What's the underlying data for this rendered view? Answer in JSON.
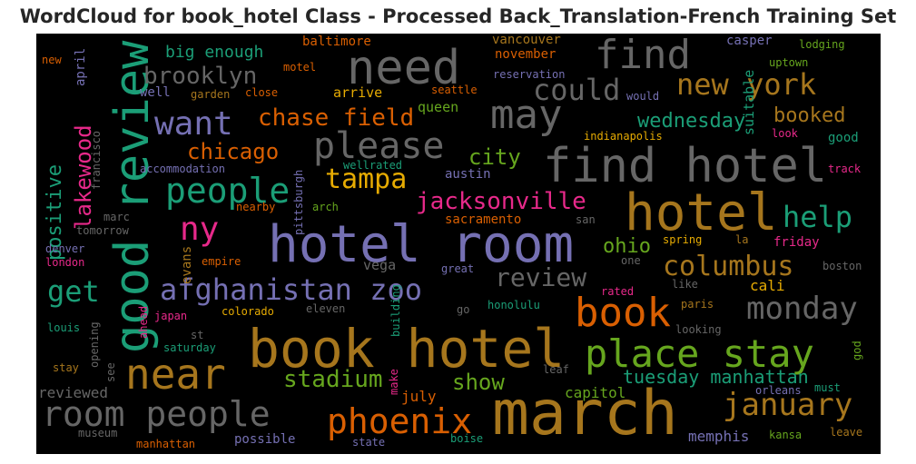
{
  "title": "WordCloud for book_hotel Class - Processed Back_Translation-French Training Set",
  "palette": {
    "background": "#000000",
    "orange": "#d95f02",
    "teal": "#1b9e77",
    "purple": "#7570b3",
    "magenta": "#e7298a",
    "green": "#66a61e",
    "gold": "#e6ab02",
    "brown": "#a6761d",
    "gray": "#666666"
  },
  "words": [
    "book hotel",
    "march",
    "hotel room",
    "good review",
    "hotel",
    "find hotel",
    "need",
    "near",
    "room people",
    "may",
    "find",
    "place stay",
    "book",
    "afghanistan zoo",
    "please",
    "phoenix",
    "january",
    "monday",
    "people",
    "want",
    "new york",
    "columbus",
    "review",
    "could",
    "chase field",
    "tampa",
    "ny",
    "help",
    "jacksonville",
    "get",
    "lakewood",
    "stadium",
    "brooklyn",
    "positive",
    "chicago",
    "tuesday manhattan",
    "wednesday",
    "booked",
    "show",
    "city",
    "big enough",
    "ohio",
    "capitol",
    "memphis",
    "reviewed",
    "july",
    "vancouver",
    "november",
    "baltimore",
    "casper",
    "april",
    "suitable",
    "queen",
    "austin",
    "sacramento",
    "arrive",
    "well",
    "seattle",
    "lodging",
    "uptown",
    "reservation",
    "motel",
    "new",
    "garden",
    "close",
    "would",
    "look",
    "good",
    "track",
    "indianapolis",
    "accommodation",
    "wellrated",
    "francisco",
    "pittsburgh",
    "nearby",
    "arch",
    "marc",
    "tomorrow",
    "evans",
    "san",
    "spring",
    "la",
    "friday",
    "denver",
    "london",
    "empire",
    "vega",
    "one",
    "boston",
    "great",
    "cali",
    "rated",
    "like",
    "paris",
    "japan",
    "colorado",
    "eleven",
    "honolulu",
    "go",
    "building",
    "ahead",
    "louis",
    "st",
    "opening",
    "saturday",
    "looking",
    "god",
    "stay",
    "see",
    "make",
    "leaf",
    "orleans",
    "must",
    "museum",
    "manhattan",
    "possible",
    "state",
    "boise",
    "kansa",
    "leave"
  ]
}
